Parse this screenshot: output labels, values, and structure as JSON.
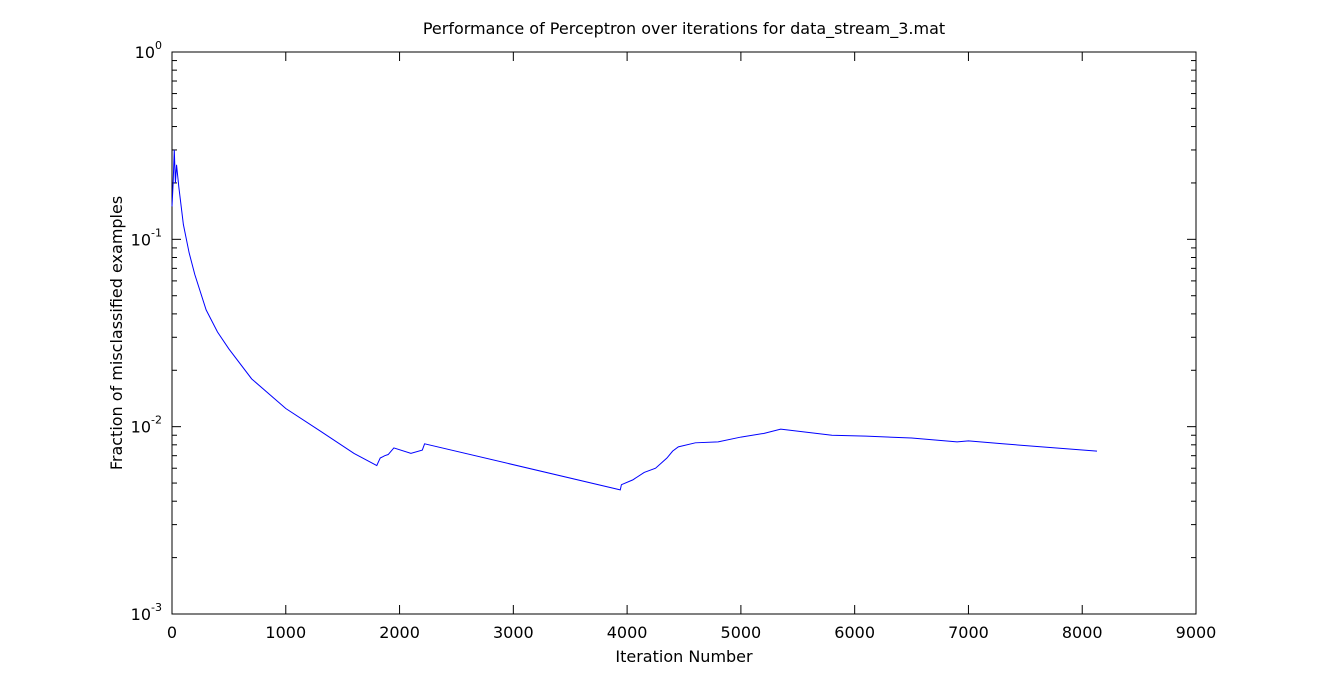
{
  "chart_data": {
    "type": "line",
    "title": "Performance of Perceptron over iterations for data_stream_3.mat",
    "x_label": "Iteration Number",
    "y_label": "Fraction of misclassified examples",
    "x": [
      0,
      10,
      20,
      30,
      40,
      60,
      100,
      150,
      200,
      300,
      400,
      500,
      700,
      1000,
      1300,
      1600,
      1800,
      1810,
      1830,
      1870,
      1900,
      1950,
      2100,
      2200,
      2220,
      3940,
      3950,
      4050,
      4150,
      4250,
      4350,
      4400,
      4450,
      4600,
      4800,
      5000,
      5200,
      5350,
      5800,
      6100,
      6500,
      6900,
      7000,
      7300,
      8130
    ],
    "values": [
      0.15,
      0.2,
      0.3,
      0.2,
      0.25,
      0.19,
      0.12,
      0.085,
      0.065,
      0.042,
      0.032,
      0.026,
      0.018,
      0.0125,
      0.0095,
      0.0072,
      0.0062,
      0.0064,
      0.0068,
      0.007,
      0.0071,
      0.0077,
      0.0072,
      0.0075,
      0.0081,
      0.0046,
      0.0049,
      0.0052,
      0.0057,
      0.006,
      0.0068,
      0.0074,
      0.0078,
      0.0082,
      0.0083,
      0.0088,
      0.0092,
      0.0097,
      0.009,
      0.0089,
      0.0087,
      0.0083,
      0.0084,
      0.0081,
      0.0074
    ],
    "color": "#0000ff",
    "xlim": [
      0,
      9000
    ],
    "xticks": [
      0,
      1000,
      2000,
      3000,
      4000,
      5000,
      6000,
      7000,
      8000,
      9000
    ],
    "ylim": [
      0.001,
      1
    ],
    "yscale": "log",
    "yticks": [
      {
        "value": 0.001,
        "label": "10^-3"
      },
      {
        "value": 0.01,
        "label": "10^-2"
      },
      {
        "value": 0.1,
        "label": "10^-1"
      },
      {
        "value": 1,
        "label": "10^0"
      }
    ],
    "yminorticks": [
      0.002,
      0.003,
      0.004,
      0.005,
      0.006,
      0.007,
      0.008,
      0.009,
      0.02,
      0.03,
      0.04,
      0.05,
      0.06,
      0.07,
      0.08,
      0.09,
      0.2,
      0.3,
      0.4,
      0.5,
      0.6,
      0.7,
      0.8,
      0.9
    ],
    "grid": false
  }
}
